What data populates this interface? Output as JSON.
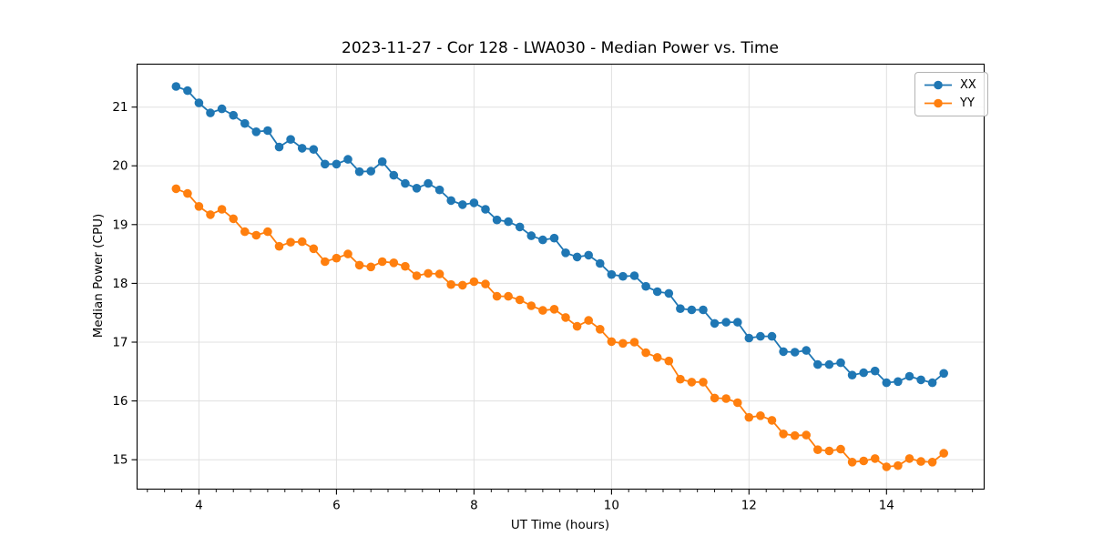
{
  "chart_data": {
    "type": "line",
    "title": "2023-11-27 - Cor 128 - LWA030 - Median Power vs. Time",
    "xlabel": "UT Time (hours)",
    "ylabel": "Median Power (CPU)",
    "xlim": [
      3.1,
      15.42
    ],
    "ylim": [
      14.5,
      21.73
    ],
    "xticks_major": [
      4,
      6,
      8,
      10,
      12,
      14
    ],
    "x_minor_step": 0.25,
    "yticks": [
      15,
      16,
      17,
      18,
      19,
      20,
      21
    ],
    "grid": true,
    "grid_color": "#e0e0e0",
    "legend_position": "upper right",
    "x_start": 3.6667,
    "x_step": 0.166667,
    "series": [
      {
        "name": "XX",
        "color": "#1f77b4",
        "values": [
          21.35,
          21.28,
          21.07,
          20.9,
          20.97,
          20.86,
          20.72,
          20.58,
          20.6,
          20.32,
          20.45,
          20.3,
          20.28,
          20.03,
          20.03,
          20.11,
          19.9,
          19.91,
          20.07,
          19.84,
          19.7,
          19.62,
          19.7,
          19.59,
          19.41,
          19.34,
          19.37,
          19.26,
          19.08,
          19.05,
          18.96,
          18.81,
          18.74,
          18.77,
          18.52,
          18.45,
          18.48,
          18.34,
          18.15,
          18.12,
          18.13,
          17.95,
          17.86,
          17.83,
          17.57,
          17.55,
          17.55,
          17.32,
          17.34,
          17.34,
          17.07,
          17.1,
          17.1,
          16.84,
          16.83,
          16.86,
          16.62,
          16.62,
          16.65,
          16.44,
          16.48,
          16.51,
          16.31,
          16.33,
          16.42,
          16.36,
          16.31,
          16.47
        ]
      },
      {
        "name": "YY",
        "color": "#ff7f0e",
        "values": [
          19.61,
          19.53,
          19.31,
          19.17,
          19.26,
          19.1,
          18.88,
          18.82,
          18.88,
          18.63,
          18.7,
          18.71,
          18.59,
          18.37,
          18.43,
          18.5,
          18.31,
          18.28,
          18.37,
          18.35,
          18.29,
          18.13,
          18.17,
          18.16,
          17.98,
          17.97,
          18.03,
          17.99,
          17.78,
          17.78,
          17.72,
          17.62,
          17.54,
          17.56,
          17.42,
          17.27,
          17.37,
          17.22,
          17.01,
          16.98,
          17.0,
          16.82,
          16.74,
          16.68,
          16.37,
          16.32,
          16.32,
          16.05,
          16.04,
          15.97,
          15.72,
          15.75,
          15.67,
          15.44,
          15.41,
          15.42,
          15.17,
          15.15,
          15.18,
          14.96,
          14.98,
          15.02,
          14.88,
          14.9,
          15.02,
          14.97,
          14.96,
          15.11
        ]
      }
    ]
  }
}
